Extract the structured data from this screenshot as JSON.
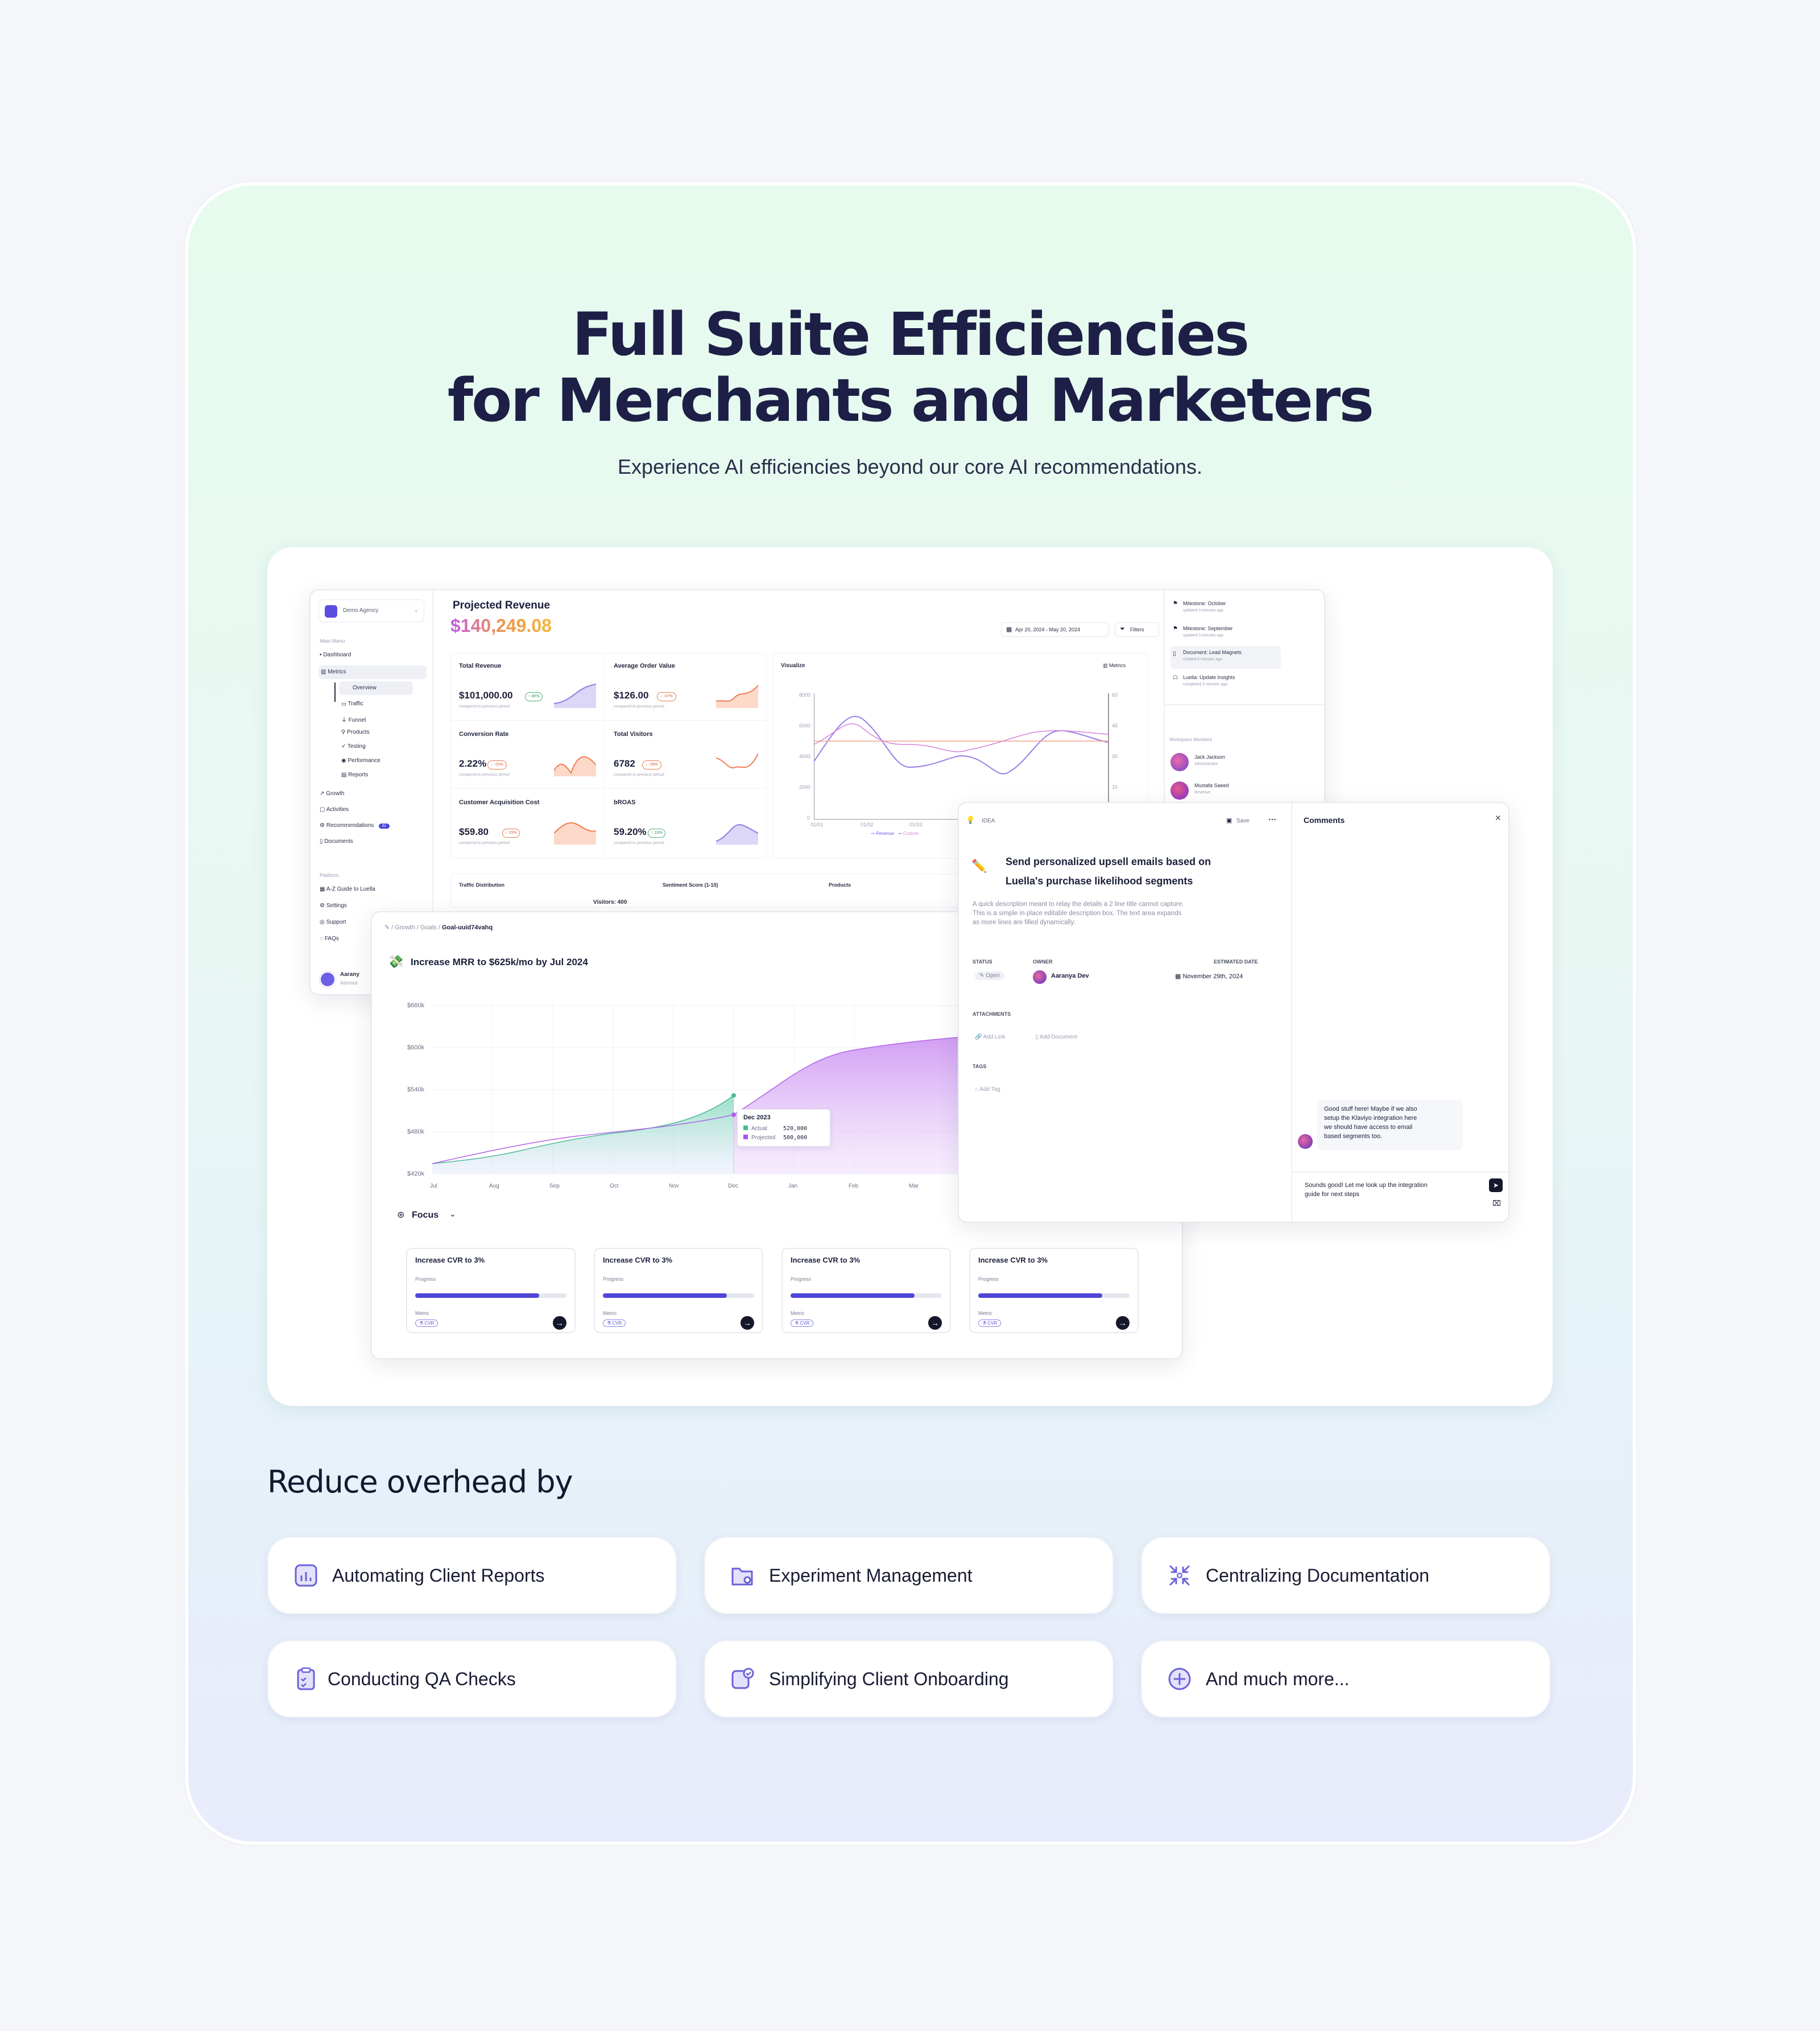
{
  "hero": {
    "title_line1": "Full Suite Efficiencies",
    "title_line2": "for Merchants and Marketers",
    "subtitle": "Experience AI efficiencies beyond our core AI recommendations."
  },
  "sidebar": {
    "workspace": "Demo Agency",
    "main_menu_label": "Main Menu",
    "items": {
      "dashboard": "Dashboard",
      "metrics": "Metrics",
      "overview": "Overview",
      "traffic": "Traffic",
      "funnel": "Funnel",
      "products": "Products",
      "testing": "Testing",
      "performance": "Performance",
      "reports": "Reports",
      "growth": "Growth",
      "activities": "Activities",
      "recommendations": "Recommendations",
      "recommendations_badge": "AI",
      "documents": "Documents"
    },
    "platform_label": "Platform",
    "platform": {
      "guide": "A-Z Guide to Luella",
      "settings": "Settings",
      "support": "Support",
      "faqs": "FAQs"
    },
    "user": {
      "name": "Aarany",
      "role": "Administ"
    }
  },
  "dashboard": {
    "title": "Projected Revenue",
    "amount": "$140,249.08",
    "date_range": "Apr 20, 2024 - May 20, 2024",
    "filters": "Filters",
    "kpis": [
      {
        "label": "Total Revenue",
        "value": "$101,000.00",
        "delta": "↑ 80%",
        "dir": "up",
        "note": "compared to previous period"
      },
      {
        "label": "Average Order Value",
        "value": "$126.00",
        "delta": "↓ -37%",
        "dir": "dn",
        "note": "compared to previous period"
      },
      {
        "label": "Conversion Rate",
        "value": "2.22%",
        "delta": "↓ -15%",
        "dir": "dn",
        "note": "compared to previous period"
      },
      {
        "label": "Total Visitors",
        "value": "6782",
        "delta": "↓ -28%",
        "dir": "dn",
        "note": "compared to previous period"
      },
      {
        "label": "Customer Acquisition Cost",
        "value": "$59.80",
        "delta": "↑ 15%",
        "dir": "dn",
        "note": "compared to previous period"
      },
      {
        "label": "bROAS",
        "value": "59.20%",
        "delta": "↑ 16%",
        "dir": "up",
        "note": "compared to previous period"
      }
    ],
    "visualize": {
      "title": "Visualize",
      "metrics": "Metrics",
      "y_left": [
        "8000",
        "6000",
        "4000",
        "2000",
        "0"
      ],
      "y_right": [
        "60",
        "45",
        "30",
        "15",
        "0"
      ],
      "x": [
        "01/01",
        "01/02",
        "01/03",
        "01/04"
      ],
      "legend": [
        "Revenue",
        "Custom"
      ]
    },
    "bottom": {
      "traffic": "Traffic Distribution",
      "visitors": "Visitors: 400",
      "sentiment": "Sentiment Score (1-10)",
      "products": "Products"
    }
  },
  "activity": {
    "items": [
      {
        "title": "Milestone: October",
        "sub": "updated 3 minutes ago"
      },
      {
        "title": "Milestone: September",
        "sub": "updated 3 minutes ago"
      },
      {
        "title": "Document: Lead Magnets",
        "sub": "created 5 minutes ago"
      },
      {
        "title": "Luella: Update Insights",
        "sub": "completed 3 minutes ago"
      }
    ],
    "members_label": "Workspace Members",
    "members": [
      {
        "name": "Jack Jackson",
        "role": "Administrator"
      },
      {
        "name": "Mustafa Saeed",
        "role": "Revenue"
      }
    ]
  },
  "goal": {
    "breadcrumb": [
      "Growth",
      "Goals",
      "Goal-uuid74vahq"
    ],
    "title": "Increase MRR to $625k/mo by Jul 2024",
    "y": [
      "$660k",
      "$600k",
      "$540k",
      "$480k",
      "$420k"
    ],
    "x": [
      "Jul",
      "Aug",
      "Sep",
      "Oct",
      "Nov",
      "Dec",
      "Jan",
      "Feb",
      "Mar"
    ],
    "tooltip": {
      "title": "Dec 2023",
      "actual_label": "Actual",
      "actual": "520,000",
      "projected_label": "Projected",
      "projected": "500,000"
    },
    "focus": "Focus",
    "cards": [
      {
        "title": "Increase CVR to 3%",
        "progress_label": "Progress",
        "progress": 0.82,
        "metric_label": "Metric",
        "metric": "CVR"
      },
      {
        "title": "Increase CVR to 3%",
        "progress_label": "Progress",
        "progress": 0.82,
        "metric_label": "Metric",
        "metric": "CVR"
      },
      {
        "title": "Increase CVR to 3%",
        "progress_label": "Progress",
        "progress": 0.82,
        "metric_label": "Metric",
        "metric": "CVR"
      },
      {
        "title": "Increase CVR to 3%",
        "progress_label": "Progress",
        "progress": 0.82,
        "metric_label": "Metric",
        "metric": "CVR"
      }
    ]
  },
  "idea": {
    "tag": "IDEA",
    "save": "Save",
    "title_line1": "Send personalized upsell emails based on",
    "title_line2": "Luella's purchase likelihood segments",
    "desc": [
      "A quick description meant to relay the details a 2 line title cannot capture.",
      "This is a simple in-place editable description box. The text area expands",
      "as more lines are filled dynamically."
    ],
    "status_label": "STATUS",
    "status": "Open",
    "owner_label": "OWNER",
    "owner": "Aaranya Dev",
    "date_label": "ESTIMATED DATE",
    "date": "November 29th, 2024",
    "attachments_label": "ATTACHMENTS",
    "add_link": "Add Link",
    "add_document": "Add Document",
    "tags_label": "TAGS",
    "add_tag": "Add Tag"
  },
  "comments": {
    "title": "Comments",
    "message": [
      "Good stuff here! Maybe if we also",
      "setup the Klaviyo integration here",
      "we should have access to email",
      "based segments too."
    ],
    "reply": [
      "Sounds good! Let me look up the integration",
      "guide for next steps"
    ]
  },
  "reduce": {
    "title": "Reduce overhead by",
    "features": [
      {
        "label": "Automating Client Reports",
        "icon": "report-chart-icon"
      },
      {
        "label": "Experiment Management",
        "icon": "folder-gear-icon"
      },
      {
        "label": "Centralizing Documentation",
        "icon": "collapse-arrows-icon"
      },
      {
        "label": "Conducting QA Checks",
        "icon": "clipboard-check-icon"
      },
      {
        "label": "Simplifying Client Onboarding",
        "icon": "user-check-icon"
      },
      {
        "label": "And much more...",
        "icon": "plus-circle-icon"
      }
    ]
  },
  "colors": {
    "accent": "#4f46d9",
    "purple": "#a855f7",
    "orange": "#f58a5a",
    "teal": "#3fbf92",
    "title": "#1d1f47"
  }
}
